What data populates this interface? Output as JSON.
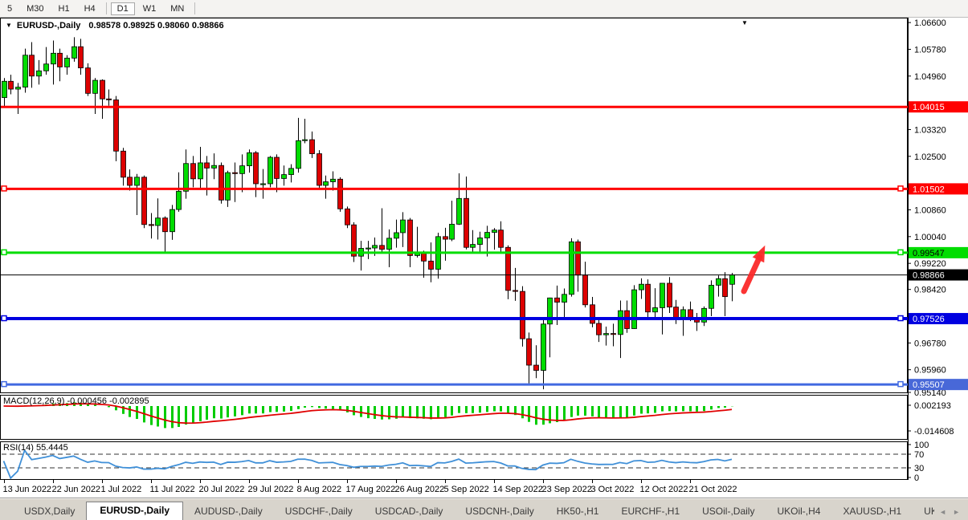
{
  "toolbar": {
    "timeframes": [
      {
        "label": "5",
        "active": false
      },
      {
        "label": "M30",
        "active": false
      },
      {
        "label": "H1",
        "active": false
      },
      {
        "label": "H4",
        "active": false
      },
      {
        "label": "D1",
        "active": true
      },
      {
        "label": "W1",
        "active": false
      },
      {
        "label": "MN",
        "active": false
      }
    ]
  },
  "chart_header": {
    "dropdown_icon": "▼",
    "symbol": "EURUSD-,Daily",
    "ohlc": "0.98578 0.98925 0.98060 0.98866"
  },
  "indicators": {
    "macd_label": "MACD(12,26,9) -0.000456 -0.002895",
    "rsi_label": "RSI(14) 55.4445"
  },
  "tabs": {
    "items": [
      {
        "label": "USDX,Daily",
        "active": false
      },
      {
        "label": "EURUSD-,Daily",
        "active": true
      },
      {
        "label": "AUDUSD-,Daily",
        "active": false
      },
      {
        "label": "USDCHF-,Daily",
        "active": false
      },
      {
        "label": "USDCAD-,Daily",
        "active": false
      },
      {
        "label": "USDCNH-,Daily",
        "active": false
      },
      {
        "label": "HK50-,H1",
        "active": false
      },
      {
        "label": "EURCHF-,H1",
        "active": false
      },
      {
        "label": "USOil-,Daily",
        "active": false
      },
      {
        "label": "UKOil-,H4",
        "active": false
      },
      {
        "label": "XAUUSD-,H1",
        "active": false
      },
      {
        "label": "UKOil-,Daily",
        "active": false
      }
    ],
    "scroll_left_icon": "◄",
    "scroll_right_icon": "►"
  },
  "chart_data": {
    "type": "candlestick",
    "symbol": "EURUSD-,Daily",
    "timeframe": "Daily",
    "current_bar": {
      "open": 0.98578,
      "high": 0.98925,
      "low": 0.9806,
      "close": 0.98866
    },
    "ylim": [
      0.9524,
      1.0675
    ],
    "grid": false,
    "price_ticks": [
      "1.06600",
      "1.05780",
      "1.04960",
      "1.03320",
      "1.02500",
      "1.00860",
      "1.00040",
      "0.99220",
      "0.98420",
      "0.96780",
      "0.95960",
      "0.95140"
    ],
    "x_labels": [
      "13 Jun 2022",
      "22 Jun 2022",
      "1 Jul 2022",
      "11 Jul 2022",
      "20 Jul 2022",
      "29 Jul 2022",
      "8 Aug 2022",
      "17 Aug 2022",
      "26 Aug 2022",
      "5 Sep 2022",
      "14 Sep 2022",
      "23 Sep 2022",
      "3 Oct 2022",
      "12 Oct 2022",
      "21 Oct 2022"
    ],
    "hlines": [
      {
        "price": 1.04015,
        "label": "1.04015",
        "color": "#ff0000",
        "width": 3,
        "label_bg": "#ff0000",
        "label_fg": "#ffffff",
        "handles": false
      },
      {
        "price": 1.01502,
        "label": "1.01502",
        "color": "#ff0000",
        "width": 3,
        "label_bg": "#ff0000",
        "label_fg": "#ffffff",
        "handles": true
      },
      {
        "price": 0.99547,
        "label": "0.99547",
        "color": "#00dd00",
        "width": 3,
        "label_bg": "#00dd00",
        "label_fg": "#000000",
        "handles": true
      },
      {
        "price": 0.98866,
        "label": "0.98866",
        "color": "#000000",
        "width": 1,
        "label_bg": "#000000",
        "label_fg": "#ffffff",
        "handles": false
      },
      {
        "price": 0.97526,
        "label": "0.97526",
        "color": "#0000e0",
        "width": 4,
        "label_bg": "#0000e0",
        "label_fg": "#ffffff",
        "handles": true
      },
      {
        "price": 0.95507,
        "label": "0.95507",
        "color": "#4169e1",
        "width": 3,
        "label_bg": "#4868d8",
        "label_fg": "#ffffff",
        "handles": true
      }
    ],
    "colors": {
      "bull": "#00dc00",
      "bear": "#dd0000",
      "outline": "#000000",
      "macd_hist": "#00cc00",
      "macd_signal": "#e00000",
      "rsi": "#4090d8",
      "arrow": "#fb2a2a"
    },
    "candles": [
      [
        1.043,
        1.049,
        1.04,
        1.048
      ],
      [
        1.048,
        1.05,
        1.044,
        1.0456
      ],
      [
        1.0456,
        1.0475,
        1.038,
        1.0462
      ],
      [
        1.0462,
        1.058,
        1.0445,
        1.056
      ],
      [
        1.056,
        1.06,
        1.046,
        1.0496
      ],
      [
        1.0496,
        1.0545,
        1.047,
        1.0512
      ],
      [
        1.0512,
        1.0585,
        1.05,
        1.0533
      ],
      [
        1.0533,
        1.0605,
        1.047,
        1.0566
      ],
      [
        1.0566,
        1.058,
        1.048,
        1.0524
      ],
      [
        1.0524,
        1.056,
        1.05,
        1.0551
      ],
      [
        1.0551,
        1.0615,
        1.054,
        1.0586
      ],
      [
        1.0586,
        1.061,
        1.05,
        1.0521
      ],
      [
        1.0521,
        1.0535,
        1.0435,
        1.0443
      ],
      [
        1.0443,
        1.049,
        1.038,
        1.0483
      ],
      [
        1.0483,
        1.0486,
        1.0365,
        1.0426
      ],
      [
        1.0426,
        1.0455,
        1.0405,
        1.0423
      ],
      [
        1.0423,
        1.0435,
        1.0235,
        1.0266
      ],
      [
        1.0266,
        1.0276,
        1.016,
        1.0186
      ],
      [
        1.0186,
        1.021,
        1.0145,
        1.0161
      ],
      [
        1.0161,
        1.0196,
        1.007,
        1.0186
      ],
      [
        1.0186,
        1.0191,
        1.003,
        1.0041
      ],
      [
        1.0041,
        1.0076,
        0.9998,
        1.0038
      ],
      [
        1.0038,
        1.0121,
        0.9995,
        1.0061
      ],
      [
        1.0061,
        1.0066,
        0.9952,
        1.0019
      ],
      [
        1.0019,
        1.0101,
        0.9994,
        1.0087
      ],
      [
        1.0087,
        1.0201,
        1.008,
        1.0143
      ],
      [
        1.0143,
        1.0271,
        1.012,
        1.0228
      ],
      [
        1.0228,
        1.0251,
        1.0155,
        1.0181
      ],
      [
        1.0181,
        1.0279,
        1.015,
        1.023
      ],
      [
        1.023,
        1.0251,
        1.013,
        1.0214
      ],
      [
        1.0214,
        1.0259,
        1.018,
        1.0222
      ],
      [
        1.0222,
        1.0231,
        1.0105,
        1.0116
      ],
      [
        1.0116,
        1.0206,
        1.0095,
        1.02
      ],
      [
        1.02,
        1.0231,
        1.011,
        1.0197
      ],
      [
        1.0197,
        1.0256,
        1.014,
        1.0221
      ],
      [
        1.0221,
        1.0271,
        1.02,
        1.0261
      ],
      [
        1.0261,
        1.0266,
        1.0125,
        1.0166
      ],
      [
        1.0166,
        1.0211,
        1.012,
        1.0166
      ],
      [
        1.0166,
        1.0251,
        1.0155,
        1.0247
      ],
      [
        1.0247,
        1.0256,
        1.014,
        1.0182
      ],
      [
        1.0182,
        1.0222,
        1.016,
        1.0194
      ],
      [
        1.0194,
        1.0226,
        1.017,
        1.0213
      ],
      [
        1.0213,
        1.0368,
        1.02,
        1.0298
      ],
      [
        1.0298,
        1.0365,
        1.029,
        1.0301
      ],
      [
        1.0301,
        1.0326,
        1.0245,
        1.0258
      ],
      [
        1.0258,
        1.0269,
        1.015,
        1.0161
      ],
      [
        1.0161,
        1.0191,
        1.012,
        1.0172
      ],
      [
        1.0172,
        1.0204,
        1.0145,
        1.018
      ],
      [
        1.018,
        1.0186,
        1.008,
        1.0089
      ],
      [
        1.0089,
        1.0096,
        1.003,
        1.004
      ],
      [
        1.004,
        1.0048,
        0.9926,
        0.9944
      ],
      [
        0.9944,
        0.9991,
        0.99,
        0.9968
      ],
      [
        0.9968,
        0.9991,
        0.9935,
        0.9969
      ],
      [
        0.9969,
        1.0001,
        0.9945,
        0.9977
      ],
      [
        0.9977,
        1.0091,
        0.9955,
        0.9965
      ],
      [
        0.9965,
        1.0026,
        0.991,
        0.9999
      ],
      [
        0.9999,
        1.0056,
        0.997,
        1.0016
      ],
      [
        1.0016,
        1.0079,
        0.9972,
        1.0055
      ],
      [
        1.0055,
        1.0061,
        0.991,
        0.9946
      ],
      [
        0.9946,
        1.0034,
        0.994,
        0.9953
      ],
      [
        0.9953,
        0.9961,
        0.9878,
        0.9929
      ],
      [
        0.9929,
        0.9986,
        0.9864,
        0.9904
      ],
      [
        0.9904,
        1.0016,
        0.9875,
        1.0004
      ],
      [
        1.0004,
        1.0031,
        0.993,
        0.9996
      ],
      [
        0.9996,
        1.0114,
        0.999,
        1.0042
      ],
      [
        1.0042,
        1.0198,
        1.004,
        1.0121
      ],
      [
        1.0121,
        1.0188,
        0.9965,
        0.9971
      ],
      [
        0.9971,
        1.0024,
        0.9955,
        0.998
      ],
      [
        0.998,
        1.0019,
        0.9952,
        1.0
      ],
      [
        1.0,
        1.0037,
        0.9943,
        1.0017
      ],
      [
        1.0017,
        1.003,
        0.9964,
        1.0024
      ],
      [
        1.0024,
        1.0051,
        0.9955,
        0.9971
      ],
      [
        0.9971,
        0.9977,
        0.9812,
        0.9839
      ],
      [
        0.9839,
        0.9908,
        0.9807,
        0.9836
      ],
      [
        0.9836,
        0.9852,
        0.9667,
        0.9691
      ],
      [
        0.9691,
        0.971,
        0.9554,
        0.961
      ],
      [
        0.961,
        0.9671,
        0.957,
        0.9594
      ],
      [
        0.9594,
        0.9751,
        0.9536,
        0.9736
      ],
      [
        0.9736,
        0.9817,
        0.9634,
        0.9816
      ],
      [
        0.9816,
        0.9854,
        0.9733,
        0.9803
      ],
      [
        0.9803,
        0.9845,
        0.9752,
        0.9827
      ],
      [
        0.9827,
        0.9999,
        0.982,
        0.9988
      ],
      [
        0.9988,
        0.9995,
        0.9835,
        0.9886
      ],
      [
        0.9886,
        0.9927,
        0.9787,
        0.9795
      ],
      [
        0.9795,
        0.9819,
        0.9726,
        0.9738
      ],
      [
        0.9738,
        0.9749,
        0.9681,
        0.9703
      ],
      [
        0.9703,
        0.9728,
        0.967,
        0.9707
      ],
      [
        0.9707,
        0.9737,
        0.9668,
        0.9704
      ],
      [
        0.9704,
        0.9808,
        0.9632,
        0.9777
      ],
      [
        0.9777,
        0.9808,
        0.9709,
        0.9722
      ],
      [
        0.9722,
        0.9855,
        0.9721,
        0.9841
      ],
      [
        0.9841,
        0.9876,
        0.9813,
        0.9858
      ],
      [
        0.9858,
        0.9873,
        0.9757,
        0.9773
      ],
      [
        0.9773,
        0.9846,
        0.9756,
        0.9786
      ],
      [
        0.9786,
        0.9861,
        0.9704,
        0.9861
      ],
      [
        0.9861,
        0.988,
        0.977,
        0.9788
      ],
      [
        0.9788,
        0.981,
        0.9736,
        0.975
      ],
      [
        0.975,
        0.979,
        0.97,
        0.978
      ],
      [
        0.978,
        0.9805,
        0.9745,
        0.9755
      ],
      [
        0.9755,
        0.977,
        0.9715,
        0.9742
      ],
      [
        0.9742,
        0.979,
        0.973,
        0.9784
      ],
      [
        0.9784,
        0.987,
        0.976,
        0.9855
      ],
      [
        0.9855,
        0.9885,
        0.982,
        0.9875
      ],
      [
        0.9875,
        0.9895,
        0.976,
        0.982
      ],
      [
        0.98578,
        0.98925,
        0.9806,
        0.98866
      ]
    ],
    "macd": {
      "name": "MACD",
      "params": [
        12,
        26,
        9
      ],
      "value": -0.000456,
      "signal_value": -0.002895,
      "axis_labels": [
        "0.002193",
        "-0.014608"
      ]
    },
    "rsi": {
      "name": "RSI",
      "params": [
        14
      ],
      "value": 55.4445,
      "levels": [
        70,
        30
      ],
      "axis_labels": [
        "100",
        "70",
        "30",
        "0"
      ]
    },
    "arrow_annotation": {
      "from": [
        926,
        363
      ],
      "to": [
        949,
        313
      ]
    },
    "shift_marker_icon": "▼"
  }
}
